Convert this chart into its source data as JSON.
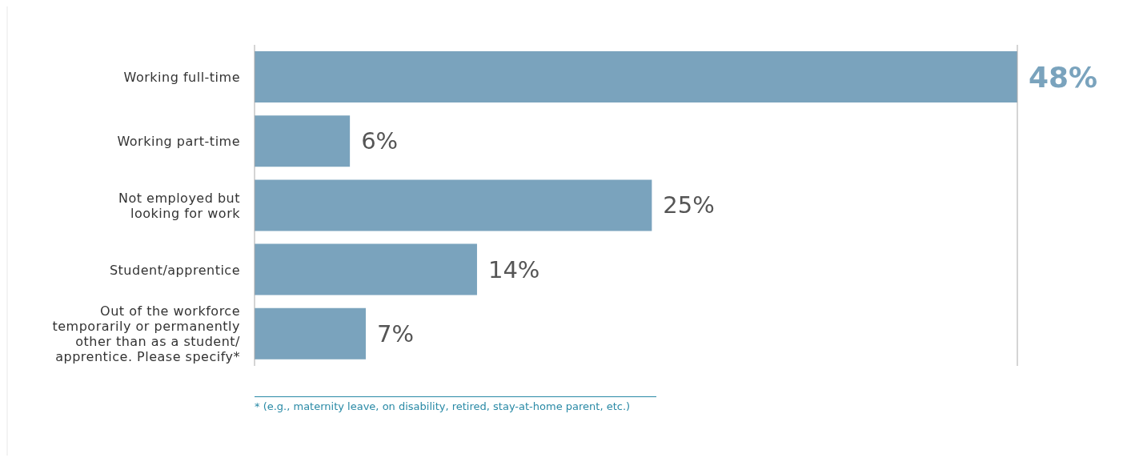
{
  "chart_data": {
    "type": "bar",
    "orientation": "horizontal",
    "categories": [
      "Working full-time",
      "Working part-time",
      "Not employed but\nlooking for work",
      "Student/apprentice",
      "Out of the workforce\ntemporarily or permanently\nother than as a student/\napprentice. Please specify*"
    ],
    "values": [
      48,
      6,
      25,
      14,
      7
    ],
    "value_labels": [
      "48%",
      "6%",
      "25%",
      "14%",
      "7%"
    ],
    "color": "#7aa3bd",
    "annotations": [
      "* (e.g., maternity leave, on disability, retired, stay-at-home parent, etc.)"
    ],
    "grid": false,
    "legend": false
  }
}
